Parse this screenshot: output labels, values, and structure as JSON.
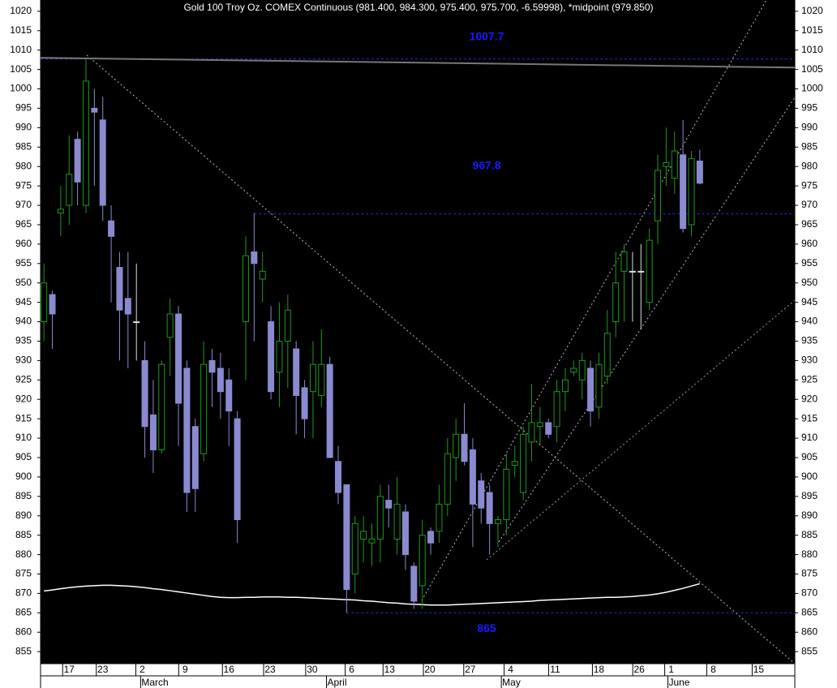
{
  "chart_data": {
    "type": "candlestick",
    "title": "Gold 100 Troy Oz. COMEX Continuous (981.400, 984.300, 975.400, 975.700, -6.59998), *midpoint (979.850)",
    "ylim": [
      851.9,
      1022.9
    ],
    "yticks": [
      855,
      860,
      865,
      870,
      875,
      880,
      885,
      890,
      895,
      900,
      905,
      910,
      915,
      920,
      925,
      930,
      935,
      940,
      945,
      950,
      955,
      960,
      965,
      970,
      975,
      980,
      985,
      990,
      995,
      1000,
      1005,
      1010,
      1015,
      1020
    ],
    "xlim": [
      -0.4,
      89.3
    ],
    "xticks": [
      {
        "value": 3.0,
        "label": "17"
      },
      {
        "value": 7.0,
        "label": "23"
      },
      {
        "value": 11.7,
        "label": "2"
      },
      {
        "value": 16.8,
        "label": "9"
      },
      {
        "value": 22.0,
        "label": "16"
      },
      {
        "value": 26.9,
        "label": "23"
      },
      {
        "value": 31.9,
        "label": "30"
      },
      {
        "value": 36.6,
        "label": "6"
      },
      {
        "value": 41.1,
        "label": "13"
      },
      {
        "value": 45.9,
        "label": "20"
      },
      {
        "value": 50.7,
        "label": "27"
      },
      {
        "value": 55.5,
        "label": "4"
      },
      {
        "value": 60.8,
        "label": "11"
      },
      {
        "value": 66.0,
        "label": "18"
      },
      {
        "value": 70.8,
        "label": "26"
      },
      {
        "value": 74.6,
        "label": "1"
      },
      {
        "value": 79.6,
        "label": "8"
      },
      {
        "value": 85.0,
        "label": "15"
      }
    ],
    "month_ticks": [
      {
        "value": 11.5,
        "label": "March"
      },
      {
        "value": 33.6,
        "label": "April"
      },
      {
        "value": 54.4,
        "label": "May"
      },
      {
        "value": 74.2,
        "label": "June"
      }
    ],
    "up_color": "#1a9a1a",
    "down_color": "#8a8ad0",
    "open": [
      940,
      947,
      968,
      970,
      987,
      970,
      995,
      992,
      966,
      954,
      946,
      940,
      930,
      916,
      907,
      936,
      942,
      928,
      913,
      906,
      930,
      928,
      925,
      915,
      940,
      958,
      951,
      940,
      927,
      935,
      933,
      923,
      922,
      921,
      929,
      904,
      898,
      875,
      884,
      883,
      884,
      894,
      884,
      891,
      877,
      872,
      886,
      886,
      893,
      905,
      911,
      907,
      899,
      896,
      888,
      889,
      903,
      896,
      909,
      913,
      914,
      913,
      922,
      927,
      925,
      928,
      918,
      926,
      940,
      953,
      953,
      953,
      945,
      966,
      980,
      977,
      983,
      965,
      981.4
    ],
    "high": [
      955,
      948,
      975,
      988,
      989,
      1007.7,
      1000,
      998,
      970,
      958,
      958,
      955,
      935,
      925,
      930,
      946,
      944,
      930,
      915,
      935,
      933,
      932,
      928,
      917,
      962,
      968,
      958,
      944,
      945,
      947,
      935,
      925,
      935,
      938,
      931,
      908,
      898,
      890,
      890,
      888,
      898,
      898,
      900,
      893,
      878,
      889,
      887,
      898,
      910,
      915,
      919,
      910,
      901,
      898,
      890,
      906,
      908,
      913,
      924,
      918,
      915,
      925,
      928,
      930,
      932,
      930,
      932,
      943,
      958,
      960,
      958,
      960,
      964,
      983,
      990,
      989,
      992,
      984,
      984.3
    ],
    "low": [
      935,
      933,
      962,
      965,
      970,
      968,
      975,
      966,
      945,
      930,
      928,
      930,
      905,
      901,
      906,
      926,
      908,
      891,
      891,
      904,
      918,
      915,
      908,
      883,
      925,
      935,
      945,
      920,
      918,
      923,
      911,
      910,
      910,
      918,
      905,
      893,
      865,
      870,
      878,
      877,
      878,
      887,
      880,
      876,
      866,
      866,
      880,
      883,
      890,
      899,
      903,
      882,
      888,
      880,
      882,
      885,
      900,
      894,
      904,
      908,
      910,
      909,
      917,
      926,
      920,
      913,
      915,
      924,
      936,
      940,
      940,
      938,
      943,
      960,
      975,
      973,
      963,
      962,
      975.4
    ],
    "close": [
      950,
      942,
      969,
      978,
      976,
      1002,
      994,
      970,
      962,
      943,
      942,
      940,
      913,
      907,
      929,
      942,
      919,
      896,
      897,
      929,
      927,
      922,
      917,
      889,
      957,
      955,
      953,
      922,
      935,
      943,
      921,
      915,
      929,
      929,
      905,
      896,
      871,
      888,
      886,
      884,
      895,
      892,
      893,
      880,
      868,
      885,
      883,
      893,
      906,
      911,
      904,
      893,
      892,
      888,
      889,
      902,
      904,
      911,
      914,
      914,
      911,
      922,
      925,
      928,
      930,
      917,
      929,
      937,
      950,
      958,
      953,
      953,
      961,
      979,
      981,
      984,
      964,
      982,
      975.7
    ],
    "moving_average": [
      870.6,
      870.9,
      871.2,
      871.5,
      871.7,
      871.9,
      872.0,
      872.1,
      872.1,
      872.0,
      871.9,
      871.7,
      871.5,
      871.2,
      871.0,
      870.7,
      870.4,
      870.1,
      869.8,
      869.5,
      869.2,
      869.0,
      868.9,
      868.9,
      869.0,
      869.0,
      869.1,
      869.1,
      869.1,
      869.0,
      869.0,
      868.9,
      868.8,
      868.7,
      868.6,
      868.5,
      868.4,
      868.3,
      868.1,
      868.0,
      867.8,
      867.6,
      867.5,
      867.3,
      867.2,
      867.1,
      867.0,
      867.0,
      867.0,
      867.1,
      867.2,
      867.3,
      867.4,
      867.5,
      867.6,
      867.7,
      867.8,
      867.9,
      868.0,
      868.2,
      868.3,
      868.4,
      868.5,
      868.6,
      868.7,
      868.8,
      868.9,
      869.0,
      869.0,
      869.1,
      869.2,
      869.4,
      869.6,
      869.9,
      870.3,
      870.8,
      871.3,
      871.9,
      872.5
    ],
    "long_average": {
      "x": [
        -0.4,
        89.3
      ],
      "values": [
        1008,
        1005.5
      ]
    },
    "levels": [
      {
        "value": 1007.7,
        "start": -0.4
      },
      {
        "value": 967.8,
        "start": 25
      },
      {
        "value": 865,
        "start": 36
      }
    ]
  }
}
